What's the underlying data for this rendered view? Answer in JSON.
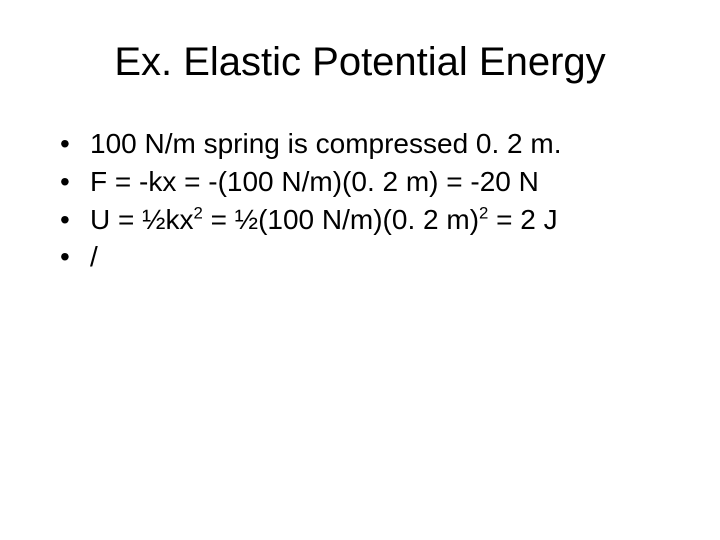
{
  "title": "Ex. Elastic Potential Energy",
  "bullets": [
    "100 N/m spring is compressed 0. 2 m.",
    "F = -kx = -(100 N/m)(0. 2 m) = -20 N",
    "U = ½kx² = ½(100 N/m)(0. 2 m)² = 2 J",
    "/"
  ],
  "bullets_html": [
    "100 N/m spring is compressed 0. 2 m.",
    "F = -kx = -(100 N/m)(0. 2 m) = -20 N",
    "U = ½kx<sup>2</sup> = ½(100 N/m)(0. 2 m)<sup>2</sup> = 2 J",
    "/"
  ],
  "style": {
    "background_color": "#ffffff",
    "text_color": "#000000",
    "title_fontsize": 40,
    "bullet_fontsize": 28,
    "font_family": "Arial"
  }
}
